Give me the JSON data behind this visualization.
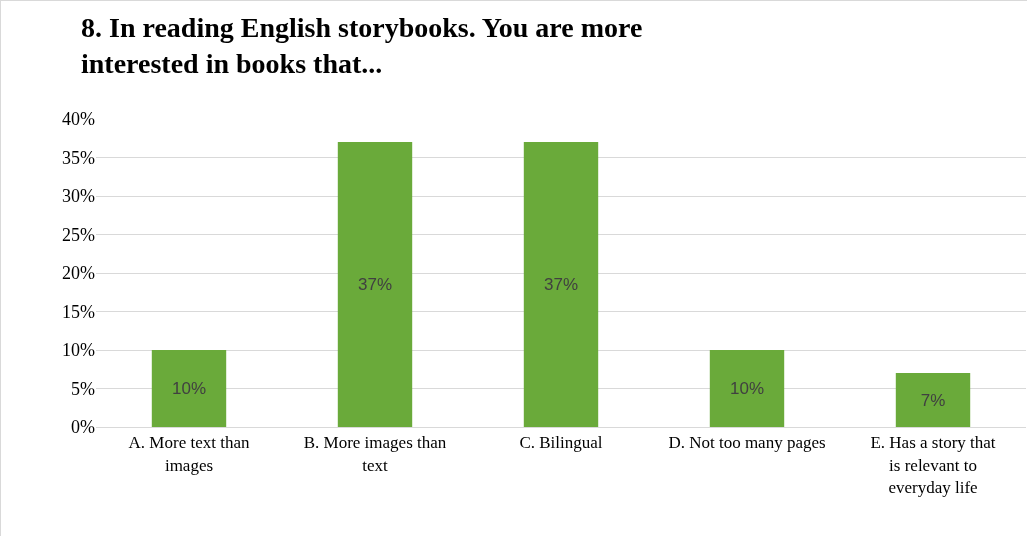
{
  "chart_data": {
    "type": "bar",
    "title": "8. In reading English storybooks. You are more interested in books that...",
    "categories": [
      "A. More text than images",
      "B. More images than text",
      "C. Bilingual",
      "D. Not too many pages",
      "E. Has a story that is relevant to everyday life"
    ],
    "values": [
      10,
      37,
      37,
      10,
      7
    ],
    "value_labels": [
      "10%",
      "37%",
      "37%",
      "10%",
      "7%"
    ],
    "color": "#6aaa3a",
    "ylim": [
      0,
      40
    ],
    "yticks": [
      {
        "value": 0,
        "label": "0%"
      },
      {
        "value": 5,
        "label": "5%"
      },
      {
        "value": 10,
        "label": "10%"
      },
      {
        "value": 15,
        "label": "15%"
      },
      {
        "value": 20,
        "label": "20%"
      },
      {
        "value": 25,
        "label": "25%"
      },
      {
        "value": 30,
        "label": "30%"
      },
      {
        "value": 35,
        "label": "35%"
      },
      {
        "value": 40,
        "label": "40%"
      }
    ],
    "grid": "y"
  }
}
